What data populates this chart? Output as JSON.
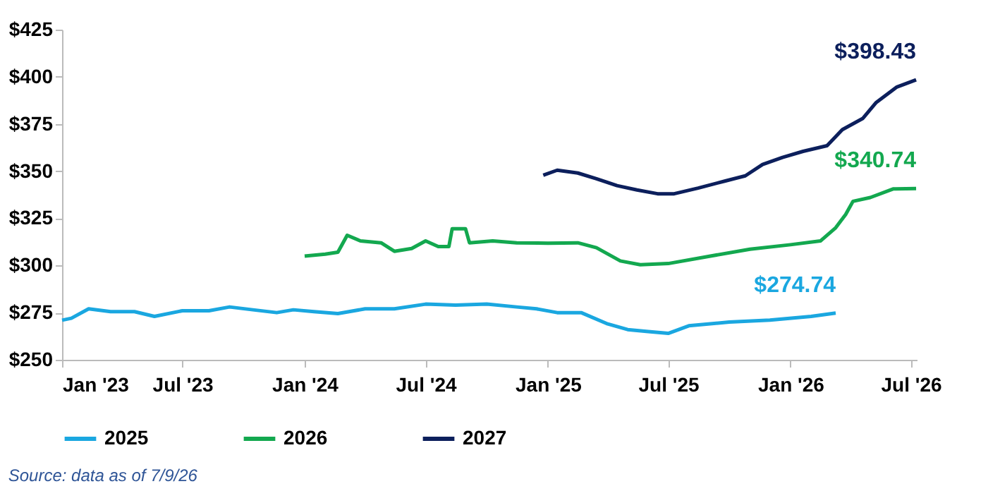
{
  "chart_data": {
    "type": "line",
    "xlim": [
      "2023-01-01",
      "2026-07-10"
    ],
    "xticks": [
      {
        "value": "2023-01-01",
        "label": "Jan '23"
      },
      {
        "value": "2023-07-01",
        "label": "Jul '23"
      },
      {
        "value": "2024-01-01",
        "label": "Jan '24"
      },
      {
        "value": "2024-07-01",
        "label": "Jul '24"
      },
      {
        "value": "2025-01-01",
        "label": "Jan '25"
      },
      {
        "value": "2025-07-01",
        "label": "Jul '25"
      },
      {
        "value": "2026-01-01",
        "label": "Jan '26"
      },
      {
        "value": "2026-07-01",
        "label": "Jul '26"
      }
    ],
    "ylim": [
      250,
      425
    ],
    "yticks": [
      {
        "value": 250,
        "label": "$250"
      },
      {
        "value": 275,
        "label": "$275"
      },
      {
        "value": 300,
        "label": "$300"
      },
      {
        "value": 325,
        "label": "$325"
      },
      {
        "value": 350,
        "label": "$350"
      },
      {
        "value": 375,
        "label": "$375"
      },
      {
        "value": 400,
        "label": "$400"
      },
      {
        "value": 425,
        "label": "$425"
      }
    ],
    "grid": false,
    "legend": "bottom",
    "marker": "none",
    "line_style": "solid",
    "series": [
      {
        "name": "2025",
        "color": "#1aa7e0",
        "x": [
          "2023-01-01",
          "2023-01-15",
          "2023-02-10",
          "2023-03-15",
          "2023-04-20",
          "2023-05-20",
          "2023-07-01",
          "2023-08-10",
          "2023-09-10",
          "2023-10-15",
          "2023-11-20",
          "2023-12-15",
          "2024-01-15",
          "2024-02-20",
          "2024-04-01",
          "2024-05-15",
          "2024-07-01",
          "2024-08-15",
          "2024-10-01",
          "2024-11-15",
          "2024-12-15",
          "2025-01-15",
          "2025-02-20",
          "2025-04-01",
          "2025-05-01",
          "2025-06-01",
          "2025-07-01",
          "2025-08-01",
          "2025-10-01",
          "2025-12-01",
          "2026-02-01",
          "2026-03-10"
        ],
        "values": [
          271,
          272,
          277,
          275.5,
          275.5,
          273,
          276,
          276,
          278,
          276.5,
          275,
          276.5,
          275.5,
          274.5,
          277,
          277,
          279.5,
          279,
          279.5,
          278,
          277,
          275,
          275,
          269,
          266,
          265,
          264,
          268,
          270,
          271,
          273,
          274.74
        ]
      },
      {
        "name": "2026",
        "color": "#13a84f",
        "x": [
          "2024-01-01",
          "2024-02-01",
          "2024-02-20",
          "2024-03-05",
          "2024-03-25",
          "2024-04-25",
          "2024-05-15",
          "2024-06-10",
          "2024-07-01",
          "2024-07-20",
          "2024-08-05",
          "2024-08-10",
          "2024-08-30",
          "2024-09-05",
          "2024-10-10",
          "2024-11-15",
          "2025-01-01",
          "2025-02-15",
          "2025-03-15",
          "2025-04-20",
          "2025-05-20",
          "2025-07-01",
          "2025-09-01",
          "2025-11-01",
          "2026-01-01",
          "2026-02-15",
          "2026-03-10",
          "2026-03-25",
          "2026-04-05",
          "2026-05-01",
          "2026-06-05",
          "2026-07-09"
        ],
        "values": [
          305,
          306,
          307,
          316,
          313,
          312,
          307.5,
          309,
          313,
          310,
          310,
          319.5,
          319.5,
          312,
          313,
          312,
          311.8,
          312,
          309.4,
          302.4,
          300.4,
          301,
          304.9,
          308.6,
          311,
          313,
          320,
          327,
          334,
          336,
          340.6,
          340.74
        ]
      },
      {
        "name": "2027",
        "color": "#0c1f5c",
        "x": [
          "2024-12-25",
          "2025-01-15",
          "2025-02-15",
          "2025-03-15",
          "2025-04-15",
          "2025-05-15",
          "2025-06-15",
          "2025-07-10",
          "2025-08-15",
          "2025-09-25",
          "2025-10-25",
          "2025-11-20",
          "2025-12-20",
          "2026-01-20",
          "2026-02-25",
          "2026-03-20",
          "2026-04-20",
          "2026-05-10",
          "2026-06-10",
          "2026-07-09"
        ],
        "values": [
          347.8,
          350.5,
          349,
          346,
          342.3,
          340,
          338,
          338,
          341,
          344.8,
          347.5,
          353.5,
          357.3,
          360.5,
          363.5,
          372,
          378,
          386.4,
          394.6,
          398.43
        ]
      }
    ],
    "annotations": [
      {
        "text": "$274.74",
        "x": "2026-03-10",
        "y": 274.74
      },
      {
        "text": "$340.74",
        "x": "2026-07-09",
        "y": 340.74
      },
      {
        "text": "$398.43",
        "x": "2026-07-09",
        "y": 398.43
      },
      "Source: data as of 7/9/26"
    ]
  }
}
